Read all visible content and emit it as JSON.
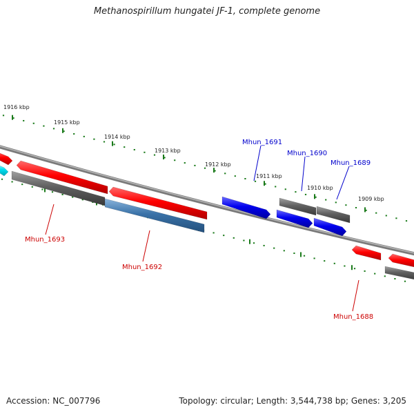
{
  "title": "Methanospirillum hungatei JF-1, complete genome",
  "footer": {
    "accession": "Accession: NC_007796",
    "summary": "Topology: circular; Length: 3,544,738 bp; Genes: 3,205"
  },
  "scale_labels": [
    "1916 kbp",
    "1915 kbp",
    "1914 kbp",
    "1913 kbp",
    "1912 kbp",
    "1911 kbp",
    "1910 kbp",
    "1909 kbp"
  ],
  "gene_labels": {
    "forward": [
      "Mhun_1691",
      "Mhun_1690",
      "Mhun_1689"
    ],
    "reverse": [
      "Mhun_1693",
      "Mhun_1692",
      "Mhun_1688"
    ]
  },
  "colors": {
    "forward_label": "#0000cc",
    "reverse_label": "#cc0000",
    "tick": "#1a7a1a",
    "backbone": "#808080",
    "red_gene": "#e00000",
    "blue_gene": "#0000e0",
    "grey_gene": "#606060",
    "steel_gene": "#3a72a8",
    "cyan_gene": "#00d8e8"
  }
}
